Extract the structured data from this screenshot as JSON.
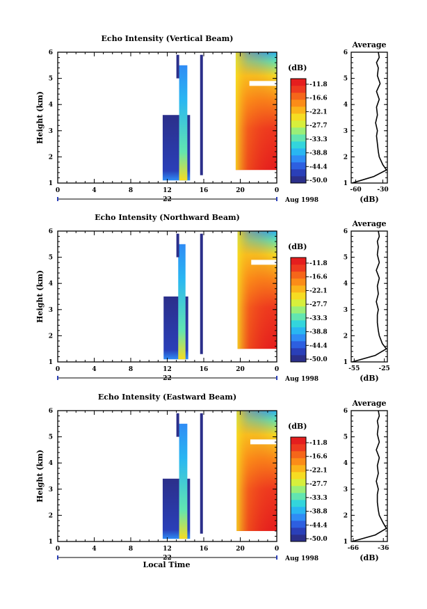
{
  "figure": {
    "x_axis_title": "Local Time",
    "day_label": "22",
    "date_label": "Aug 1998",
    "colorbar_unit": "(dB)",
    "colorbar_ticks": [
      "-11.8",
      "-16.6",
      "-22.1",
      "-27.7",
      "-33.3",
      "-38.8",
      "-44.4",
      "-50.0"
    ],
    "colorbar_colors": [
      "#2b2f8a",
      "#2a3fb8",
      "#2d5fe0",
      "#2f8cf5",
      "#29b6f2",
      "#33d5dc",
      "#62e5b0",
      "#9aef78",
      "#d7ef3c",
      "#f6dc22",
      "#fbb41a",
      "#fb8c18",
      "#f5661a",
      "#ee3a1f",
      "#e51e1e"
    ],
    "average_title": "Average"
  },
  "chart_data": [
    {
      "type": "heatmap",
      "title": "Echo Intensity (Vertical Beam)",
      "ylabel": "Height (km)",
      "x_ticks": [
        "0",
        "4",
        "8",
        "12",
        "16",
        "20",
        "0"
      ],
      "x_range": [
        0,
        24
      ],
      "y_ticks": [
        "1",
        "2",
        "3",
        "4",
        "5",
        "6"
      ],
      "y_range": [
        1,
        6
      ],
      "colorbar_range_db": [
        -50.0,
        -11.8
      ],
      "echo_regions": [
        {
          "t_start": 11.5,
          "t_end": 14.5,
          "h_bottom": 1.1,
          "h_top": 3.6,
          "intensity": "weak (-50 to -30 dB)"
        },
        {
          "t_start": 13.3,
          "t_end": 14.2,
          "h_bottom": 1.1,
          "h_top": 5.5,
          "intensity": "moderate (-35 to -25 dB)"
        },
        {
          "t_start": 19.5,
          "t_end": 24.0,
          "h_bottom": 1.5,
          "h_top": 6.0,
          "intensity": "strong (-22 to -11.8 dB)"
        }
      ],
      "average": {
        "xlabel": "(dB)",
        "x_ticks": [
          "-60",
          "-30"
        ],
        "x_range": [
          -65,
          -25
        ],
        "height_km": [
          1.0,
          1.25,
          1.5,
          1.7,
          2.0,
          2.2,
          2.5,
          2.8,
          3.0,
          3.3,
          3.6,
          3.9,
          4.2,
          4.5,
          4.8,
          5.1,
          5.4,
          5.6,
          5.8,
          6.0
        ],
        "mean_db": [
          -64,
          -40,
          -26,
          -30,
          -34,
          -35,
          -36,
          -37,
          -36,
          -38,
          -36,
          -37,
          -34,
          -37,
          -33,
          -36,
          -35,
          -37,
          -34,
          -35
        ]
      }
    },
    {
      "type": "heatmap",
      "title": "Echo Intensity (Northward Beam)",
      "ylabel": "Height (km)",
      "x_ticks": [
        "0",
        "4",
        "8",
        "12",
        "16",
        "20",
        "0"
      ],
      "x_range": [
        0,
        24
      ],
      "y_ticks": [
        "1",
        "2",
        "3",
        "4",
        "5",
        "6"
      ],
      "y_range": [
        1,
        6
      ],
      "colorbar_range_db": [
        -50.0,
        -11.8
      ],
      "echo_regions": [
        {
          "t_start": 11.6,
          "t_end": 14.3,
          "h_bottom": 1.1,
          "h_top": 3.5,
          "intensity": "weak (-50 to -30 dB)"
        },
        {
          "t_start": 13.2,
          "t_end": 14.0,
          "h_bottom": 1.1,
          "h_top": 5.5,
          "intensity": "moderate (-35 to -25 dB)"
        },
        {
          "t_start": 19.7,
          "t_end": 24.0,
          "h_bottom": 1.5,
          "h_top": 6.0,
          "intensity": "strong (-22 to -11.8 dB)"
        }
      ],
      "average": {
        "xlabel": "(dB)",
        "x_ticks": [
          "-55",
          "-25"
        ],
        "x_range": [
          -58,
          -22
        ],
        "height_km": [
          1.0,
          1.25,
          1.5,
          1.7,
          2.0,
          2.2,
          2.5,
          2.8,
          3.0,
          3.3,
          3.6,
          3.9,
          4.2,
          4.5,
          4.8,
          5.1,
          5.4,
          5.6,
          5.8,
          6.0
        ],
        "mean_db": [
          -57,
          -34,
          -23,
          -27,
          -30,
          -31,
          -32,
          -32,
          -31,
          -33,
          -31,
          -32,
          -30,
          -33,
          -30,
          -32,
          -31,
          -32,
          -30,
          -31
        ]
      }
    },
    {
      "type": "heatmap",
      "title": "Echo Intensity (Eastward Beam)",
      "ylabel": "Height (km)",
      "x_ticks": [
        "0",
        "4",
        "8",
        "12",
        "16",
        "20",
        "0"
      ],
      "x_range": [
        0,
        24
      ],
      "y_ticks": [
        "1",
        "2",
        "3",
        "4",
        "5",
        "6"
      ],
      "y_range": [
        1,
        6
      ],
      "colorbar_range_db": [
        -50.0,
        -11.8
      ],
      "echo_regions": [
        {
          "t_start": 11.5,
          "t_end": 14.5,
          "h_bottom": 1.1,
          "h_top": 3.4,
          "intensity": "weak (-50 to -30 dB)"
        },
        {
          "t_start": 13.3,
          "t_end": 14.2,
          "h_bottom": 1.1,
          "h_top": 5.5,
          "intensity": "moderate (-35 to -25 dB)"
        },
        {
          "t_start": 19.6,
          "t_end": 24.0,
          "h_bottom": 1.4,
          "h_top": 6.0,
          "intensity": "strong (-22 to -11.8 dB)"
        }
      ],
      "average": {
        "xlabel": "(dB)",
        "x_ticks": [
          "-66",
          "-36"
        ],
        "x_range": [
          -68,
          -32
        ],
        "height_km": [
          1.0,
          1.25,
          1.5,
          1.7,
          2.0,
          2.2,
          2.5,
          2.8,
          3.0,
          3.3,
          3.6,
          3.9,
          4.2,
          4.5,
          4.8,
          5.1,
          5.4,
          5.6,
          5.8,
          6.0
        ],
        "mean_db": [
          -67,
          -44,
          -33,
          -36,
          -40,
          -41,
          -42,
          -42,
          -41,
          -43,
          -41,
          -42,
          -40,
          -43,
          -40,
          -42,
          -41,
          -42,
          -40,
          -41
        ]
      }
    }
  ]
}
